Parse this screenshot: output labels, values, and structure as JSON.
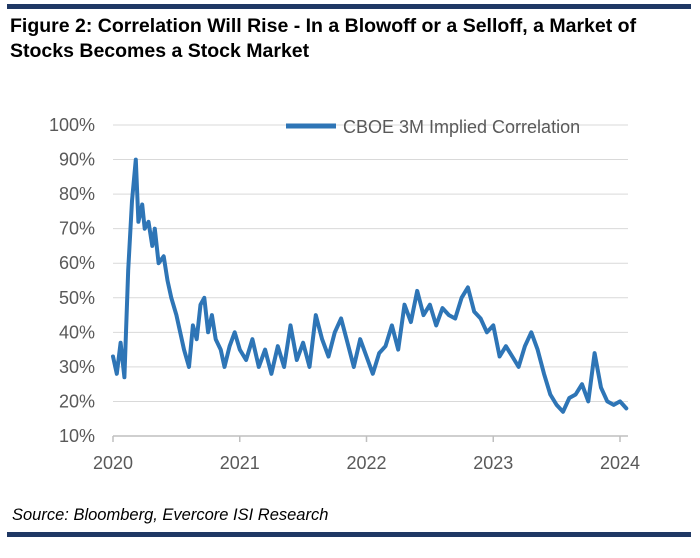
{
  "title": "Figure 2: Correlation Will Rise - In a Blowoff or a Selloff, a Market of Stocks Becomes a Stock Market",
  "source": "Source: Bloomberg, Evercore ISI Research",
  "colors": {
    "line": "#2e75b6",
    "rule": "#1f3864",
    "grid": "#d9d9d9",
    "axis": "#bfbfbf",
    "tick_text": "#595959"
  },
  "chart_data": {
    "type": "line",
    "title": "",
    "xlabel": "",
    "ylabel": "",
    "ylim": [
      0.1,
      1.0
    ],
    "y_ticks": [
      0.1,
      0.2,
      0.3,
      0.4,
      0.5,
      0.6,
      0.7,
      0.8,
      0.9,
      1.0
    ],
    "y_tick_labels": [
      "10%",
      "20%",
      "30%",
      "40%",
      "50%",
      "60%",
      "70%",
      "80%",
      "90%",
      "100%"
    ],
    "xlim": [
      2020.0,
      2024.1
    ],
    "x_ticks": [
      2020,
      2021,
      2022,
      2023,
      2024
    ],
    "x_tick_labels": [
      "2020",
      "2021",
      "2022",
      "2023",
      "2024"
    ],
    "grid": true,
    "legend": "top-right",
    "series": [
      {
        "name": "CBOE 3M Implied Correlation",
        "x": [
          2020.0,
          2020.03,
          2020.06,
          2020.09,
          2020.12,
          2020.15,
          2020.18,
          2020.2,
          2020.23,
          2020.25,
          2020.28,
          2020.31,
          2020.33,
          2020.36,
          2020.4,
          2020.43,
          2020.46,
          2020.5,
          2020.53,
          2020.56,
          2020.6,
          2020.63,
          2020.66,
          2020.69,
          2020.72,
          2020.75,
          2020.78,
          2020.81,
          2020.85,
          2020.88,
          2020.92,
          2020.96,
          2021.0,
          2021.05,
          2021.1,
          2021.15,
          2021.2,
          2021.25,
          2021.3,
          2021.35,
          2021.4,
          2021.45,
          2021.5,
          2021.55,
          2021.6,
          2021.65,
          2021.7,
          2021.75,
          2021.8,
          2021.85,
          2021.9,
          2021.95,
          2022.0,
          2022.05,
          2022.1,
          2022.15,
          2022.2,
          2022.25,
          2022.3,
          2022.35,
          2022.4,
          2022.45,
          2022.5,
          2022.55,
          2022.6,
          2022.65,
          2022.7,
          2022.75,
          2022.8,
          2022.85,
          2022.9,
          2022.95,
          2023.0,
          2023.05,
          2023.1,
          2023.15,
          2023.2,
          2023.25,
          2023.3,
          2023.35,
          2023.4,
          2023.45,
          2023.5,
          2023.55,
          2023.6,
          2023.65,
          2023.7,
          2023.75,
          2023.8,
          2023.85,
          2023.9,
          2023.95,
          2024.0,
          2024.05
        ],
        "values": [
          0.33,
          0.28,
          0.37,
          0.27,
          0.58,
          0.78,
          0.9,
          0.72,
          0.77,
          0.7,
          0.72,
          0.65,
          0.7,
          0.6,
          0.62,
          0.55,
          0.5,
          0.45,
          0.4,
          0.35,
          0.3,
          0.42,
          0.38,
          0.48,
          0.5,
          0.4,
          0.45,
          0.38,
          0.35,
          0.3,
          0.36,
          0.4,
          0.35,
          0.32,
          0.38,
          0.3,
          0.35,
          0.28,
          0.36,
          0.3,
          0.42,
          0.32,
          0.37,
          0.3,
          0.45,
          0.38,
          0.33,
          0.4,
          0.44,
          0.37,
          0.3,
          0.38,
          0.33,
          0.28,
          0.34,
          0.36,
          0.42,
          0.35,
          0.48,
          0.43,
          0.52,
          0.45,
          0.48,
          0.42,
          0.47,
          0.45,
          0.44,
          0.5,
          0.53,
          0.46,
          0.44,
          0.4,
          0.42,
          0.33,
          0.36,
          0.33,
          0.3,
          0.36,
          0.4,
          0.35,
          0.28,
          0.22,
          0.19,
          0.17,
          0.21,
          0.22,
          0.25,
          0.2,
          0.34,
          0.24,
          0.2,
          0.19,
          0.2,
          0.18
        ]
      }
    ]
  }
}
